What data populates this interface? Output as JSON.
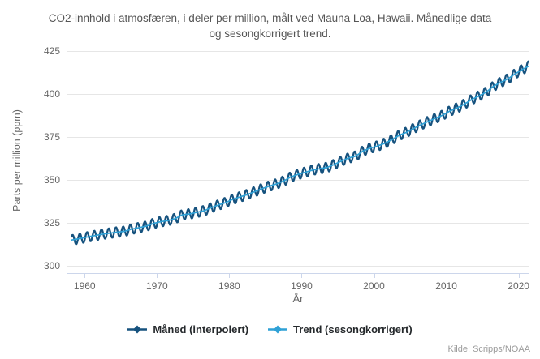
{
  "title_lines": [
    "CO2-innhold i atmosfæren, i deler per million, målt ved Mauna Loa, Hawaii. Månedlige data",
    "og sesongkorrigert trend."
  ],
  "source": "Kilde: Scripps/NOAA",
  "chart_data": {
    "type": "line",
    "title": "CO2-innhold i atmosfæren, i deler per million, målt ved Mauna Loa, Hawaii. Månedlige data og sesongkorrigert trend.",
    "xlabel": "År",
    "ylabel": "Parts per million (ppm)",
    "x_ticks": [
      1960,
      1970,
      1980,
      1990,
      2000,
      2010,
      2020
    ],
    "y_ticks": [
      300,
      325,
      350,
      375,
      400,
      425
    ],
    "xlim": [
      1957.5,
      2021.5
    ],
    "ylim": [
      295.75,
      426.4
    ],
    "grid": true,
    "legend_position": "bottom",
    "x_start": 1958.2,
    "x_end": 2021.4,
    "seasonal_amplitude": 2.9,
    "seasonal_phase": 0.08,
    "series": [
      {
        "name": "Måned (interpolert)",
        "color": "#16527e",
        "kind": "monthly_with_seasonal_cycle"
      },
      {
        "name": "Trend (sesongkorrigert)",
        "color": "#2fa1d6",
        "kind": "trend",
        "years_start": 1958,
        "annual_values": [
          315.23,
          315.97,
          316.91,
          317.64,
          318.45,
          318.99,
          319.62,
          320.04,
          321.37,
          322.18,
          323.05,
          324.62,
          325.68,
          326.32,
          327.46,
          329.68,
          330.19,
          331.12,
          332.03,
          333.84,
          335.41,
          336.84,
          338.76,
          340.12,
          341.48,
          343.15,
          344.87,
          346.35,
          347.61,
          349.31,
          351.69,
          353.2,
          354.45,
          355.7,
          356.54,
          357.21,
          358.96,
          360.97,
          362.74,
          363.88,
          366.84,
          368.54,
          369.71,
          371.32,
          373.45,
          375.98,
          377.7,
          379.98,
          382.09,
          384.02,
          385.83,
          387.64,
          390.1,
          391.85,
          394.06,
          396.74,
          398.81,
          401.01,
          404.41,
          406.76,
          408.72,
          411.66,
          414.24,
          416.45
        ]
      }
    ]
  }
}
